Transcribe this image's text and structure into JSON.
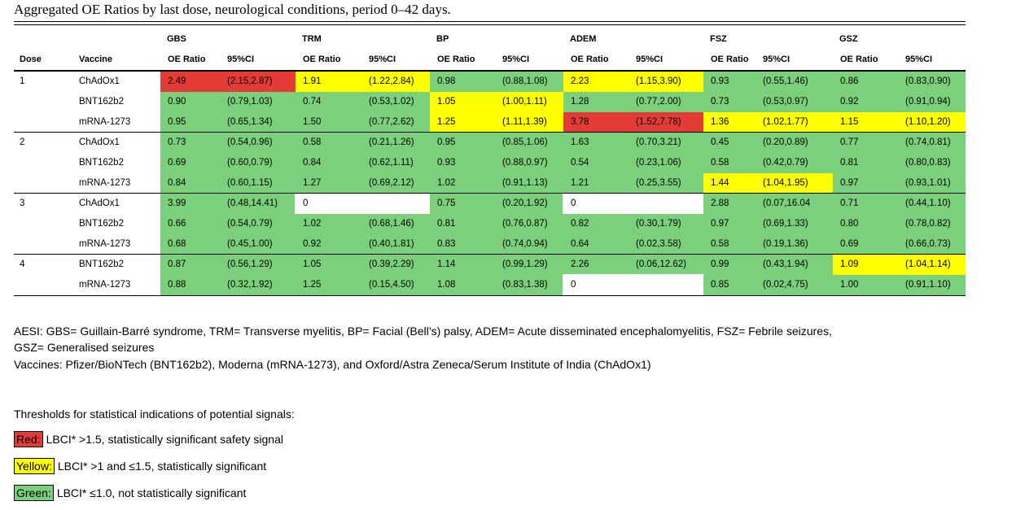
{
  "title": "Aggregated OE Ratios by last dose, neurological conditions, period 0–42 days.",
  "headers": {
    "conditions": [
      "GBS",
      "TRM",
      "BP",
      "ADEM",
      "FSZ",
      "GSZ"
    ],
    "dose": "Dose",
    "vaccine": "Vaccine",
    "oe": "OE Ratio",
    "ci": "95%CI"
  },
  "rows": [
    {
      "dose": "1",
      "vaccine": "ChAdOx1",
      "cells": [
        {
          "oe": "2.49",
          "ci": "(2.15,2.87)",
          "color": "red"
        },
        {
          "oe": "1.91",
          "ci": "(1.22,2.84)",
          "color": "yellow"
        },
        {
          "oe": "0.98",
          "ci": "(0.88,1.08)",
          "color": "green"
        },
        {
          "oe": "2.23",
          "ci": "(1.15,3.90)",
          "color": "yellow"
        },
        {
          "oe": "0.93",
          "ci": "(0.55,1.46)",
          "color": "green"
        },
        {
          "oe": "0.86",
          "ci": "(0.83,0.90)",
          "color": "green"
        }
      ]
    },
    {
      "dose": "",
      "vaccine": "BNT162b2",
      "cells": [
        {
          "oe": "0.90",
          "ci": "(0.79,1.03)",
          "color": "green"
        },
        {
          "oe": "0.74",
          "ci": "(0.53,1.02)",
          "color": "green"
        },
        {
          "oe": "1.05",
          "ci": "(1.00,1.11)",
          "color": "yellow"
        },
        {
          "oe": "1.28",
          "ci": "(0.77,2.00)",
          "color": "green"
        },
        {
          "oe": "0.73",
          "ci": "(0.53,0.97)",
          "color": "green"
        },
        {
          "oe": "0.92",
          "ci": "(0.91,0.94)",
          "color": "green"
        }
      ]
    },
    {
      "dose": "",
      "vaccine": "mRNA-1273",
      "cells": [
        {
          "oe": "0.95",
          "ci": "(0.65,1.34)",
          "color": "green"
        },
        {
          "oe": "1.50",
          "ci": "(0.77,2.62)",
          "color": "green"
        },
        {
          "oe": "1.25",
          "ci": "(1.11,1.39)",
          "color": "yellow"
        },
        {
          "oe": "3.78",
          "ci": "(1.52,7.78)",
          "color": "red"
        },
        {
          "oe": "1.36",
          "ci": "(1.02,1.77)",
          "color": "yellow"
        },
        {
          "oe": "1.15",
          "ci": "(1.10,1.20)",
          "color": "yellow"
        }
      ]
    },
    {
      "dose": "2",
      "vaccine": "ChAdOx1",
      "cells": [
        {
          "oe": "0.73",
          "ci": "(0.54,0.96)",
          "color": "green"
        },
        {
          "oe": "0.58",
          "ci": "(0.21,1.26)",
          "color": "green"
        },
        {
          "oe": "0.95",
          "ci": "(0.85,1.06)",
          "color": "green"
        },
        {
          "oe": "1.63",
          "ci": "(0.70,3.21)",
          "color": "green"
        },
        {
          "oe": "0.45",
          "ci": "(0.20,0.89)",
          "color": "green"
        },
        {
          "oe": "0.77",
          "ci": "(0.74,0.81)",
          "color": "green"
        }
      ]
    },
    {
      "dose": "",
      "vaccine": "BNT162b2",
      "cells": [
        {
          "oe": "0.69",
          "ci": "(0.60,0.79)",
          "color": "green"
        },
        {
          "oe": "0.84",
          "ci": "(0.62,1.11)",
          "color": "green"
        },
        {
          "oe": "0.93",
          "ci": "(0.88,0.97)",
          "color": "green"
        },
        {
          "oe": "0.54",
          "ci": "(0.23,1.06)",
          "color": "green"
        },
        {
          "oe": "0.58",
          "ci": "(0.42,0.79)",
          "color": "green"
        },
        {
          "oe": "0.81",
          "ci": "(0.80,0.83)",
          "color": "green"
        }
      ]
    },
    {
      "dose": "",
      "vaccine": "mRNA-1273",
      "cells": [
        {
          "oe": "0.84",
          "ci": "(0.60,1.15)",
          "color": "green"
        },
        {
          "oe": "1.27",
          "ci": "(0.69,2.12)",
          "color": "green"
        },
        {
          "oe": "1.02",
          "ci": "(0.91,1.13)",
          "color": "green"
        },
        {
          "oe": "1.21",
          "ci": "(0.25,3.55)",
          "color": "green"
        },
        {
          "oe": "1.44",
          "ci": "(1.04,1.95)",
          "color": "yellow"
        },
        {
          "oe": "0.97",
          "ci": "(0.93,1.01)",
          "color": "green"
        }
      ]
    },
    {
      "dose": "3",
      "vaccine": "ChAdOx1",
      "cells": [
        {
          "oe": "3.99",
          "ci": "(0.48,14.41)",
          "color": "green"
        },
        {
          "oe": "0",
          "ci": "",
          "color": "white"
        },
        {
          "oe": "0.75",
          "ci": "(0.20,1.92)",
          "color": "green"
        },
        {
          "oe": "0",
          "ci": "",
          "color": "white"
        },
        {
          "oe": "2.88",
          "ci": "(0.07,16.04",
          "color": "green"
        },
        {
          "oe": "0.71",
          "ci": "(0.44,1.10)",
          "color": "green"
        }
      ]
    },
    {
      "dose": "",
      "vaccine": "BNT162b2",
      "cells": [
        {
          "oe": "0.66",
          "ci": "(0.54,0.79)",
          "color": "green"
        },
        {
          "oe": "1.02",
          "ci": "(0.68,1.46)",
          "color": "green"
        },
        {
          "oe": "0.81",
          "ci": "(0.76,0.87)",
          "color": "green"
        },
        {
          "oe": "0.82",
          "ci": "(0.30,1.79)",
          "color": "green"
        },
        {
          "oe": "0.97",
          "ci": "(0.69,1.33)",
          "color": "green"
        },
        {
          "oe": "0.80",
          "ci": "(0.78,0.82)",
          "color": "green"
        }
      ]
    },
    {
      "dose": "",
      "vaccine": "mRNA-1273",
      "cells": [
        {
          "oe": "0.68",
          "ci": "(0.45,1.00)",
          "color": "green"
        },
        {
          "oe": "0.92",
          "ci": "(0.40,1.81)",
          "color": "green"
        },
        {
          "oe": "0.83",
          "ci": "(0.74,0.94)",
          "color": "green"
        },
        {
          "oe": "0.64",
          "ci": "(0.02,3.58)",
          "color": "green"
        },
        {
          "oe": "0.58",
          "ci": "(0.19,1.36)",
          "color": "green"
        },
        {
          "oe": "0.69",
          "ci": "(0.66,0.73)",
          "color": "green"
        }
      ]
    },
    {
      "dose": "4",
      "vaccine": "BNT162b2",
      "cells": [
        {
          "oe": "0.87",
          "ci": "(0.56,1.29)",
          "color": "green"
        },
        {
          "oe": "1.05",
          "ci": "(0.39,2.29)",
          "color": "green"
        },
        {
          "oe": "1.14",
          "ci": "(0.99,1.29)",
          "color": "green"
        },
        {
          "oe": "2.26",
          "ci": "(0.06,12.62)",
          "color": "green"
        },
        {
          "oe": "0.99",
          "ci": "(0.43,1.94)",
          "color": "green"
        },
        {
          "oe": "1.09",
          "ci": "(1.04,1.14)",
          "color": "yellow"
        }
      ]
    },
    {
      "dose": "",
      "vaccine": "mRNA-1273",
      "cells": [
        {
          "oe": "0.88",
          "ci": "(0.32,1.92)",
          "color": "green"
        },
        {
          "oe": "1.25",
          "ci": "(0.15,4.50)",
          "color": "green"
        },
        {
          "oe": "1.08",
          "ci": "(0.83,1.38)",
          "color": "green"
        },
        {
          "oe": "0",
          "ci": "",
          "color": "white"
        },
        {
          "oe": "0.85",
          "ci": "(0.02,4.75)",
          "color": "green"
        },
        {
          "oe": "1.00",
          "ci": "(0.91,1.10)",
          "color": "green"
        }
      ]
    }
  ],
  "notes": {
    "aesi_line1": "AESI: GBS= Guillain-Barré syndrome, TRM= Transverse myelitis, BP= Facial (Bell’s) palsy, ADEM= Acute disseminated encephalomyelitis, FSZ= Febrile seizures,",
    "aesi_line2": "GSZ= Generalised seizures",
    "vaccines": "Vaccines: Pfizer/BioNTech (BNT162b2), Moderna (mRNA-1273), and Oxford/Astra Zeneca/Serum Institute of India (ChAdOx1)"
  },
  "legend": {
    "heading": "Thresholds for statistical indications of potential signals:",
    "items": [
      {
        "label": "Red:",
        "text": "LBCI* >1.5, statistically significant safety signal",
        "color": "#e53b37"
      },
      {
        "label": "Yellow:",
        "text": "LBCI* >1 and ≤1.5, statistically significant",
        "color": "#ffff00"
      },
      {
        "label": "Green:",
        "text": "LBCI* ≤1.0, not statistically significant",
        "color": "#7bd07b"
      }
    ]
  },
  "colors": {
    "red": "#e53b37",
    "yellow": "#ffff00",
    "green": "#7bd07b"
  }
}
